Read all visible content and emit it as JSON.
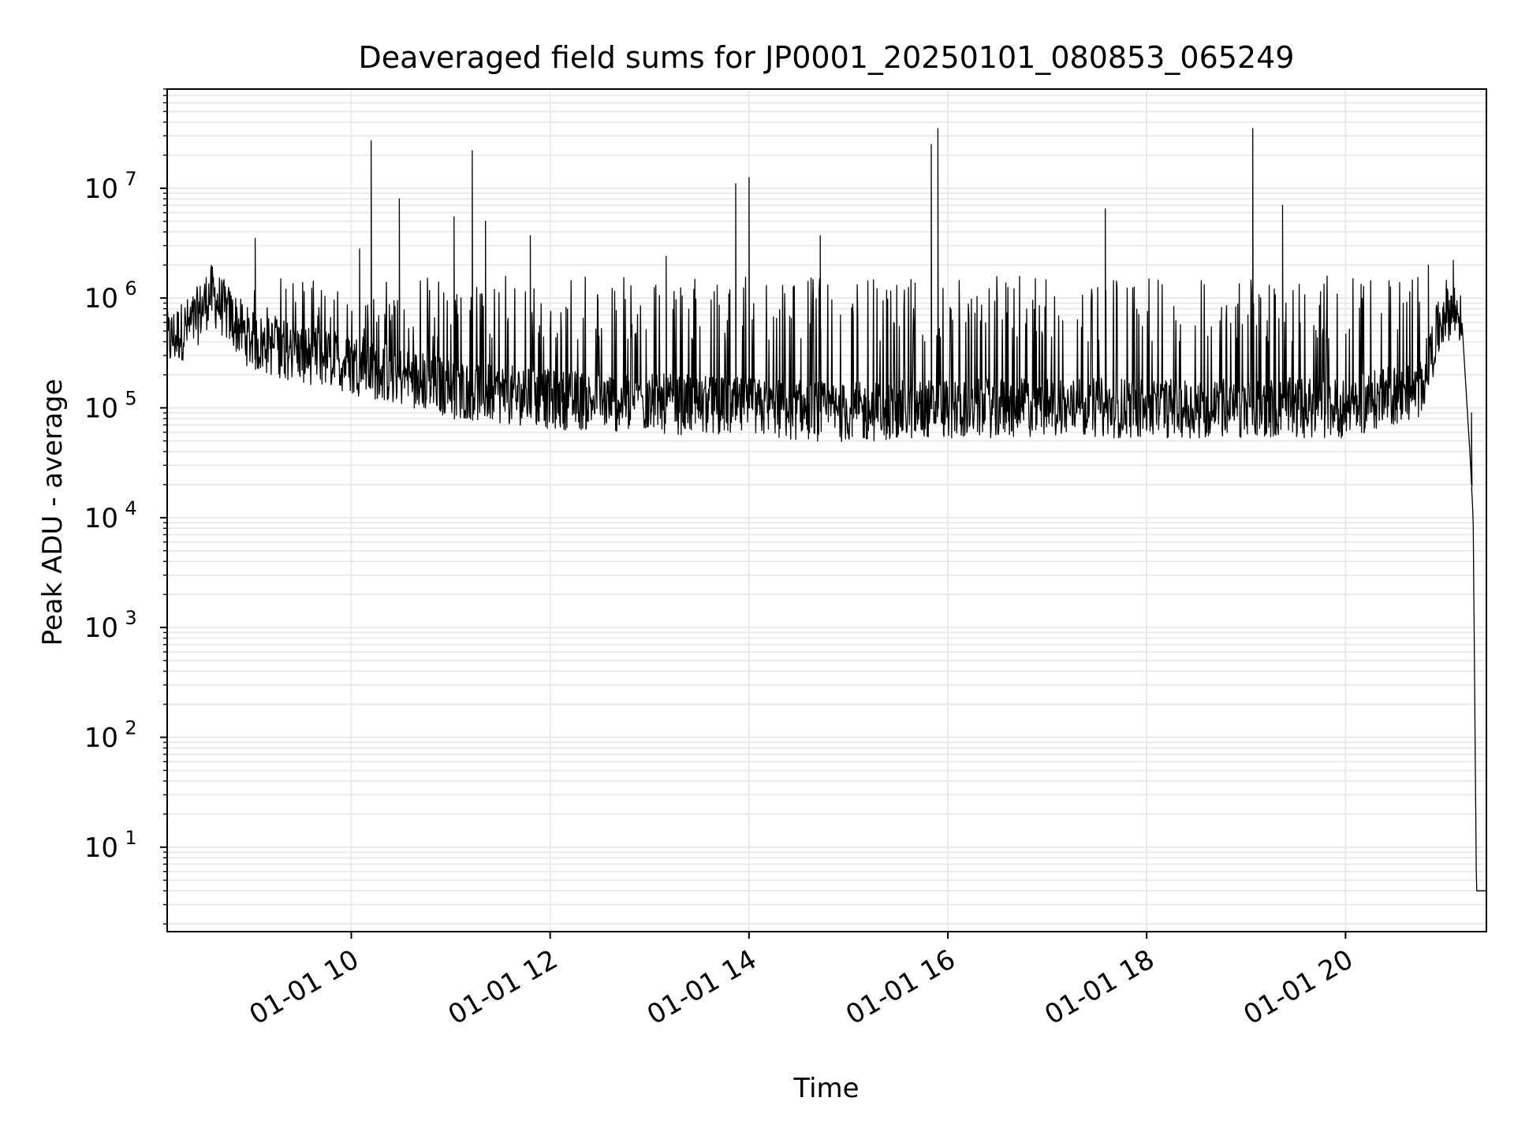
{
  "chart_data": {
    "type": "line",
    "title": "Deaveraged field sums for JP0001_20250101_080853_065249",
    "xlabel": "Time",
    "ylabel": "Peak ADU - average",
    "x_axis": {
      "kind": "time",
      "range": [
        "2025-01-01T08:08:53",
        "2025-01-01T21:25:00"
      ],
      "ticks": [
        {
          "value": "2025-01-01T10:00",
          "label": "01-01 10"
        },
        {
          "value": "2025-01-01T12:00",
          "label": "01-01 12"
        },
        {
          "value": "2025-01-01T14:00",
          "label": "01-01 14"
        },
        {
          "value": "2025-01-01T16:00",
          "label": "01-01 16"
        },
        {
          "value": "2025-01-01T18:00",
          "label": "01-01 18"
        },
        {
          "value": "2025-01-01T20:00",
          "label": "01-01 20"
        }
      ]
    },
    "y_axis": {
      "scale": "log",
      "range": [
        1.7,
        80000000
      ],
      "ticks": [
        {
          "value": 10,
          "base": "10",
          "exp": "1"
        },
        {
          "value": 100,
          "base": "10",
          "exp": "2"
        },
        {
          "value": 1000,
          "base": "10",
          "exp": "3"
        },
        {
          "value": 10000,
          "base": "10",
          "exp": "4"
        },
        {
          "value": 100000,
          "base": "10",
          "exp": "5"
        },
        {
          "value": 1000000,
          "base": "10",
          "exp": "6"
        },
        {
          "value": 10000000,
          "base": "10",
          "exp": "7"
        }
      ]
    },
    "grid": true,
    "colors": {
      "line": "#000000",
      "grid": "#e6e6e6"
    },
    "series": [
      {
        "values_description_points": [
          {
            "t": "2025-01-01T08:08:53",
            "y": 400000
          },
          {
            "t": "2025-01-01T08:25",
            "y": 600000
          },
          {
            "t": "2025-01-01T08:35",
            "y": 1100000
          },
          {
            "t": "2025-01-01T09:00",
            "y": 400000
          },
          {
            "t": "2025-01-01T10:00",
            "y": 250000
          },
          {
            "t": "2025-01-01T11:00",
            "y": 150000
          },
          {
            "t": "2025-01-01T12:00",
            "y": 120000
          },
          {
            "t": "2025-01-01T13:00",
            "y": 110000
          },
          {
            "t": "2025-01-01T14:00",
            "y": 100000
          },
          {
            "t": "2025-01-01T15:00",
            "y": 90000
          },
          {
            "t": "2025-01-01T16:00",
            "y": 100000
          },
          {
            "t": "2025-01-01T17:00",
            "y": 100000
          },
          {
            "t": "2025-01-01T18:00",
            "y": 100000
          },
          {
            "t": "2025-01-01T19:00",
            "y": 100000
          },
          {
            "t": "2025-01-01T20:00",
            "y": 100000
          },
          {
            "t": "2025-01-01T20:45",
            "y": 150000
          },
          {
            "t": "2025-01-01T21:00",
            "y": 800000
          },
          {
            "t": "2025-01-01T21:10",
            "y": 700000
          },
          {
            "t": "2025-01-01T21:15",
            "y": 40000
          },
          {
            "t": "2025-01-01T21:17",
            "y": 10000
          },
          {
            "t": "2025-01-01T21:19",
            "y": 4
          },
          {
            "t": "2025-01-01T21:25",
            "y": 4
          }
        ],
        "spikes": [
          {
            "t": "2025-01-01T09:02",
            "y": 3500000
          },
          {
            "t": "2025-01-01T10:05",
            "y": 2800000
          },
          {
            "t": "2025-01-01T10:12",
            "y": 27000000
          },
          {
            "t": "2025-01-01T10:29",
            "y": 8000000
          },
          {
            "t": "2025-01-01T11:02",
            "y": 5500000
          },
          {
            "t": "2025-01-01T11:13",
            "y": 22000000
          },
          {
            "t": "2025-01-01T11:21",
            "y": 5000000
          },
          {
            "t": "2025-01-01T11:48",
            "y": 3700000
          },
          {
            "t": "2025-01-01T13:10",
            "y": 2400000
          },
          {
            "t": "2025-01-01T13:52",
            "y": 11000000
          },
          {
            "t": "2025-01-01T14:00",
            "y": 12500000
          },
          {
            "t": "2025-01-01T14:43",
            "y": 3700000
          },
          {
            "t": "2025-01-01T15:50",
            "y": 25000000
          },
          {
            "t": "2025-01-01T15:54",
            "y": 35000000
          },
          {
            "t": "2025-01-01T17:35",
            "y": 6500000
          },
          {
            "t": "2025-01-01T19:04",
            "y": 35000000
          },
          {
            "t": "2025-01-01T19:22",
            "y": 7000000
          },
          {
            "t": "2025-01-01T20:50",
            "y": 2000000
          },
          {
            "t": "2025-01-01T21:05",
            "y": 2200000
          },
          {
            "t": "2025-01-01T21:16",
            "y": 90000
          }
        ]
      }
    ]
  }
}
